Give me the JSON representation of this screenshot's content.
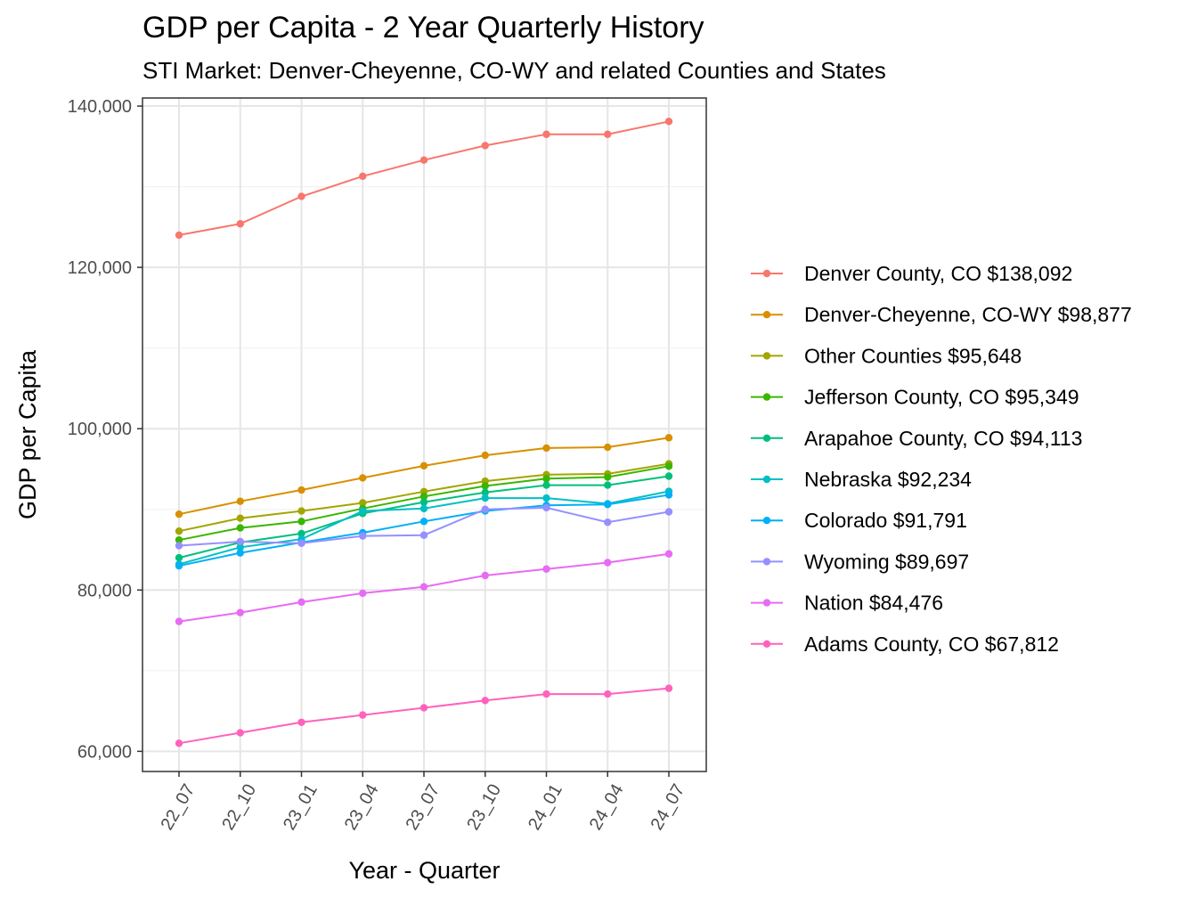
{
  "chart_data": {
    "type": "line",
    "title": "GDP per Capita - 2 Year Quarterly History",
    "subtitle": "STI Market: Denver-Cheyenne, CO-WY and related Counties and States",
    "xlabel": "Year - Quarter",
    "ylabel": "GDP per Capita",
    "ylim": [
      57500,
      141000
    ],
    "yticks": [
      60000,
      80000,
      100000,
      120000,
      140000
    ],
    "ytick_labels": [
      "60,000",
      "80,000",
      "100,000",
      "120,000",
      "140,000"
    ],
    "categories": [
      "22_07",
      "22_10",
      "23_01",
      "23_04",
      "23_07",
      "23_10",
      "24_01",
      "24_04",
      "24_07"
    ],
    "legend_position": "right",
    "grid": true,
    "series": [
      {
        "name": "Denver County, CO $138,092",
        "color": "#F8766D",
        "values": [
          124000,
          125400,
          128800,
          131300,
          133300,
          135100,
          136500,
          136500,
          138092
        ]
      },
      {
        "name": "Denver-Cheyenne, CO-WY $98,877",
        "color": "#D89000",
        "values": [
          89400,
          91000,
          92400,
          93900,
          95400,
          96700,
          97600,
          97700,
          98877
        ]
      },
      {
        "name": "Other Counties $95,648",
        "color": "#A3A500",
        "values": [
          87300,
          88900,
          89800,
          90800,
          92200,
          93500,
          94300,
          94400,
          95648
        ]
      },
      {
        "name": "Jefferson County, CO $95,349",
        "color": "#39B600",
        "values": [
          86200,
          87700,
          88500,
          90100,
          91600,
          92900,
          93800,
          94000,
          95349
        ]
      },
      {
        "name": "Arapahoe County, CO $94,113",
        "color": "#00BF7D",
        "values": [
          84000,
          85900,
          87000,
          89500,
          90900,
          92100,
          93000,
          93000,
          94113
        ]
      },
      {
        "name": "Nebraska $92,234",
        "color": "#00BFC4",
        "values": [
          83200,
          85300,
          86300,
          89800,
          90100,
          91400,
          91400,
          90700,
          92234
        ]
      },
      {
        "name": "Colorado $91,791",
        "color": "#00B0F6",
        "values": [
          83000,
          84600,
          85900,
          87100,
          88500,
          89800,
          90500,
          90600,
          91791
        ]
      },
      {
        "name": "Wyoming $89,697",
        "color": "#9590FF",
        "values": [
          85500,
          86000,
          85800,
          86700,
          86800,
          90000,
          90200,
          88400,
          89697
        ]
      },
      {
        "name": "Nation $84,476",
        "color": "#E76BF3",
        "values": [
          76100,
          77200,
          78500,
          79600,
          80400,
          81800,
          82600,
          83400,
          84476
        ]
      },
      {
        "name": "Adams County, CO $67,812",
        "color": "#FF62BC",
        "values": [
          61000,
          62300,
          63600,
          64500,
          65400,
          66300,
          67100,
          67100,
          67812
        ]
      }
    ]
  }
}
